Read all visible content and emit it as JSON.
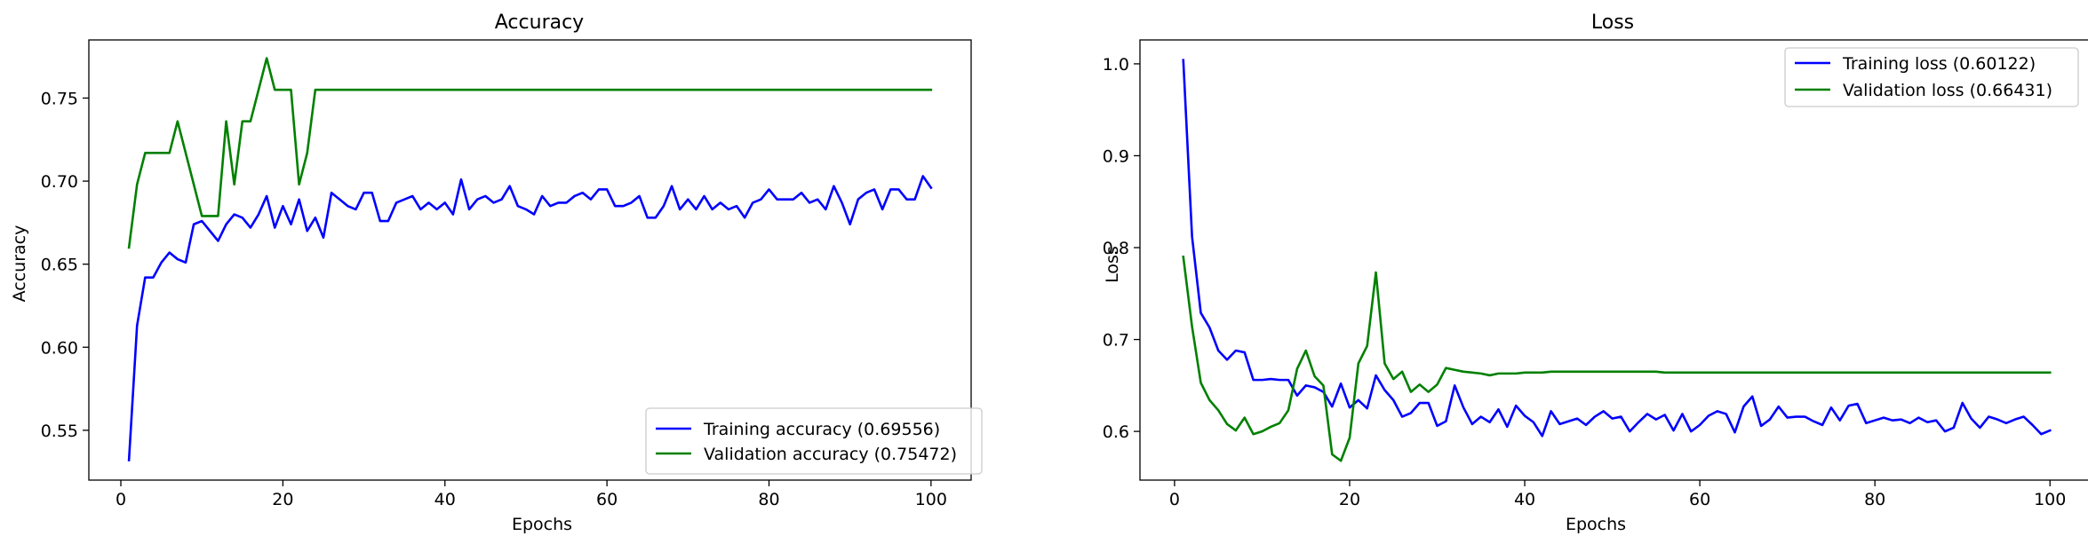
{
  "chart_data": [
    {
      "type": "line",
      "title": "Accuracy",
      "xlabel": "Epochs",
      "ylabel": "Accuracy",
      "xlim": [
        -3.95,
        104.95
      ],
      "ylim": [
        0.52,
        0.785
      ],
      "xticks": [
        0,
        20,
        40,
        60,
        80,
        100
      ],
      "xtick_labels": [
        "0",
        "20",
        "40",
        "60",
        "80",
        "100"
      ],
      "yticks": [
        0.55,
        0.6,
        0.65,
        0.7,
        0.75
      ],
      "ytick_labels": [
        "0.55",
        "0.60",
        "0.65",
        "0.70",
        "0.75"
      ],
      "grid": false,
      "legend_position": "lower-right",
      "x": [
        1,
        2,
        3,
        4,
        5,
        6,
        7,
        8,
        9,
        10,
        11,
        12,
        13,
        14,
        15,
        16,
        17,
        18,
        19,
        20,
        21,
        22,
        23,
        24,
        25,
        26,
        27,
        28,
        29,
        30,
        31,
        32,
        33,
        34,
        35,
        36,
        37,
        38,
        39,
        40,
        41,
        42,
        43,
        44,
        45,
        46,
        47,
        48,
        49,
        50,
        51,
        52,
        53,
        54,
        55,
        56,
        57,
        58,
        59,
        60,
        61,
        62,
        63,
        64,
        65,
        66,
        67,
        68,
        69,
        70,
        71,
        72,
        73,
        74,
        75,
        76,
        77,
        78,
        79,
        80,
        81,
        82,
        83,
        84,
        85,
        86,
        87,
        88,
        89,
        90,
        91,
        92,
        93,
        94,
        95,
        96,
        97,
        98,
        99,
        100
      ],
      "series": [
        {
          "name": "Training accuracy (0.69556)",
          "color": "#0000ff",
          "values": [
            0.532,
            0.613,
            0.642,
            0.642,
            0.651,
            0.657,
            0.653,
            0.651,
            0.674,
            0.676,
            0.67,
            0.664,
            0.674,
            0.68,
            0.678,
            0.672,
            0.68,
            0.691,
            0.672,
            0.685,
            0.674,
            0.689,
            0.67,
            0.678,
            0.666,
            0.693,
            0.689,
            0.685,
            0.683,
            0.693,
            0.693,
            0.676,
            0.676,
            0.687,
            0.689,
            0.691,
            0.683,
            0.687,
            0.683,
            0.687,
            0.68,
            0.701,
            0.683,
            0.689,
            0.691,
            0.687,
            0.689,
            0.697,
            0.685,
            0.683,
            0.68,
            0.691,
            0.685,
            0.687,
            0.687,
            0.691,
            0.693,
            0.689,
            0.695,
            0.695,
            0.685,
            0.685,
            0.687,
            0.691,
            0.678,
            0.678,
            0.685,
            0.697,
            0.683,
            0.689,
            0.683,
            0.691,
            0.683,
            0.687,
            0.683,
            0.685,
            0.678,
            0.687,
            0.689,
            0.695,
            0.689,
            0.689,
            0.689,
            0.693,
            0.687,
            0.689,
            0.683,
            0.697,
            0.687,
            0.674,
            0.689,
            0.693,
            0.695,
            0.683,
            0.695,
            0.695,
            0.689,
            0.689,
            0.703,
            0.696
          ]
        },
        {
          "name": "Validation accuracy (0.75472)",
          "color": "#008000",
          "values": [
            0.66,
            0.698,
            0.717,
            0.717,
            0.717,
            0.717,
            0.736,
            0.717,
            0.698,
            0.679,
            0.679,
            0.679,
            0.736,
            0.698,
            0.736,
            0.736,
            0.755,
            0.774,
            0.755,
            0.755,
            0.755,
            0.698,
            0.717,
            0.755,
            0.755,
            0.755,
            0.755,
            0.755,
            0.755,
            0.755,
            0.755,
            0.755,
            0.755,
            0.755,
            0.755,
            0.755,
            0.755,
            0.755,
            0.755,
            0.755,
            0.755,
            0.755,
            0.755,
            0.755,
            0.755,
            0.755,
            0.755,
            0.755,
            0.755,
            0.755,
            0.755,
            0.755,
            0.755,
            0.755,
            0.755,
            0.755,
            0.755,
            0.755,
            0.755,
            0.755,
            0.755,
            0.755,
            0.755,
            0.755,
            0.755,
            0.755,
            0.755,
            0.755,
            0.755,
            0.755,
            0.755,
            0.755,
            0.755,
            0.755,
            0.755,
            0.755,
            0.755,
            0.755,
            0.755,
            0.755,
            0.755,
            0.755,
            0.755,
            0.755,
            0.755,
            0.755,
            0.755,
            0.755,
            0.755,
            0.755,
            0.755,
            0.755,
            0.755,
            0.755,
            0.755,
            0.755,
            0.755,
            0.755,
            0.755,
            0.755
          ]
        }
      ]
    },
    {
      "type": "line",
      "title": "Loss",
      "xlabel": "Epochs",
      "ylabel": "Loss",
      "xlim": [
        -3.95,
        104.95
      ],
      "ylim": [
        0.547,
        1.026
      ],
      "xticks": [
        0,
        20,
        40,
        60,
        80,
        100
      ],
      "xtick_labels": [
        "0",
        "20",
        "40",
        "60",
        "80",
        "100"
      ],
      "yticks": [
        0.6,
        0.7,
        0.8,
        0.9,
        1.0
      ],
      "ytick_labels": [
        "0.6",
        "0.7",
        "0.8",
        "0.9",
        "1.0"
      ],
      "grid": false,
      "legend_position": "upper-right",
      "x": [
        1,
        2,
        3,
        4,
        5,
        6,
        7,
        8,
        9,
        10,
        11,
        12,
        13,
        14,
        15,
        16,
        17,
        18,
        19,
        20,
        21,
        22,
        23,
        24,
        25,
        26,
        27,
        28,
        29,
        30,
        31,
        32,
        33,
        34,
        35,
        36,
        37,
        38,
        39,
        40,
        41,
        42,
        43,
        44,
        45,
        46,
        47,
        48,
        49,
        50,
        51,
        52,
        53,
        54,
        55,
        56,
        57,
        58,
        59,
        60,
        61,
        62,
        63,
        64,
        65,
        66,
        67,
        68,
        69,
        70,
        71,
        72,
        73,
        74,
        75,
        76,
        77,
        78,
        79,
        80,
        81,
        82,
        83,
        84,
        85,
        86,
        87,
        88,
        89,
        90,
        91,
        92,
        93,
        94,
        95,
        96,
        97,
        98,
        99,
        100
      ],
      "series": [
        {
          "name": "Training loss (0.60122)",
          "color": "#0000ff",
          "values": [
            1.004,
            0.812,
            0.729,
            0.713,
            0.688,
            0.678,
            0.688,
            0.686,
            0.656,
            0.656,
            0.657,
            0.656,
            0.656,
            0.639,
            0.65,
            0.648,
            0.643,
            0.627,
            0.652,
            0.626,
            0.634,
            0.625,
            0.661,
            0.645,
            0.634,
            0.616,
            0.62,
            0.631,
            0.631,
            0.606,
            0.611,
            0.65,
            0.626,
            0.608,
            0.616,
            0.61,
            0.624,
            0.605,
            0.628,
            0.617,
            0.61,
            0.595,
            0.622,
            0.608,
            0.611,
            0.614,
            0.607,
            0.616,
            0.622,
            0.614,
            0.616,
            0.6,
            0.61,
            0.619,
            0.613,
            0.618,
            0.601,
            0.619,
            0.6,
            0.607,
            0.617,
            0.622,
            0.619,
            0.599,
            0.627,
            0.638,
            0.606,
            0.613,
            0.627,
            0.615,
            0.616,
            0.616,
            0.611,
            0.607,
            0.626,
            0.612,
            0.628,
            0.63,
            0.609,
            0.612,
            0.615,
            0.612,
            0.613,
            0.609,
            0.615,
            0.61,
            0.612,
            0.6,
            0.604,
            0.631,
            0.614,
            0.604,
            0.616,
            0.613,
            0.609,
            0.613,
            0.616,
            0.607,
            0.597,
            0.601
          ]
        },
        {
          "name": "Validation loss (0.66431)",
          "color": "#008000",
          "values": [
            0.79,
            0.714,
            0.653,
            0.634,
            0.623,
            0.608,
            0.601,
            0.615,
            0.597,
            0.6,
            0.605,
            0.609,
            0.623,
            0.668,
            0.688,
            0.66,
            0.65,
            0.575,
            0.568,
            0.593,
            0.674,
            0.693,
            0.773,
            0.674,
            0.657,
            0.665,
            0.643,
            0.651,
            0.643,
            0.651,
            0.669,
            0.667,
            0.665,
            0.664,
            0.663,
            0.661,
            0.663,
            0.663,
            0.663,
            0.664,
            0.664,
            0.664,
            0.665,
            0.665,
            0.665,
            0.665,
            0.665,
            0.665,
            0.665,
            0.665,
            0.665,
            0.665,
            0.665,
            0.665,
            0.665,
            0.664,
            0.664,
            0.664,
            0.664,
            0.664,
            0.664,
            0.664,
            0.664,
            0.664,
            0.664,
            0.664,
            0.664,
            0.664,
            0.664,
            0.664,
            0.664,
            0.664,
            0.664,
            0.664,
            0.664,
            0.664,
            0.664,
            0.664,
            0.664,
            0.664,
            0.664,
            0.664,
            0.664,
            0.664,
            0.664,
            0.664,
            0.664,
            0.664,
            0.664,
            0.664,
            0.664,
            0.664,
            0.664,
            0.664,
            0.664,
            0.664,
            0.664,
            0.664,
            0.664,
            0.664
          ]
        }
      ]
    }
  ]
}
